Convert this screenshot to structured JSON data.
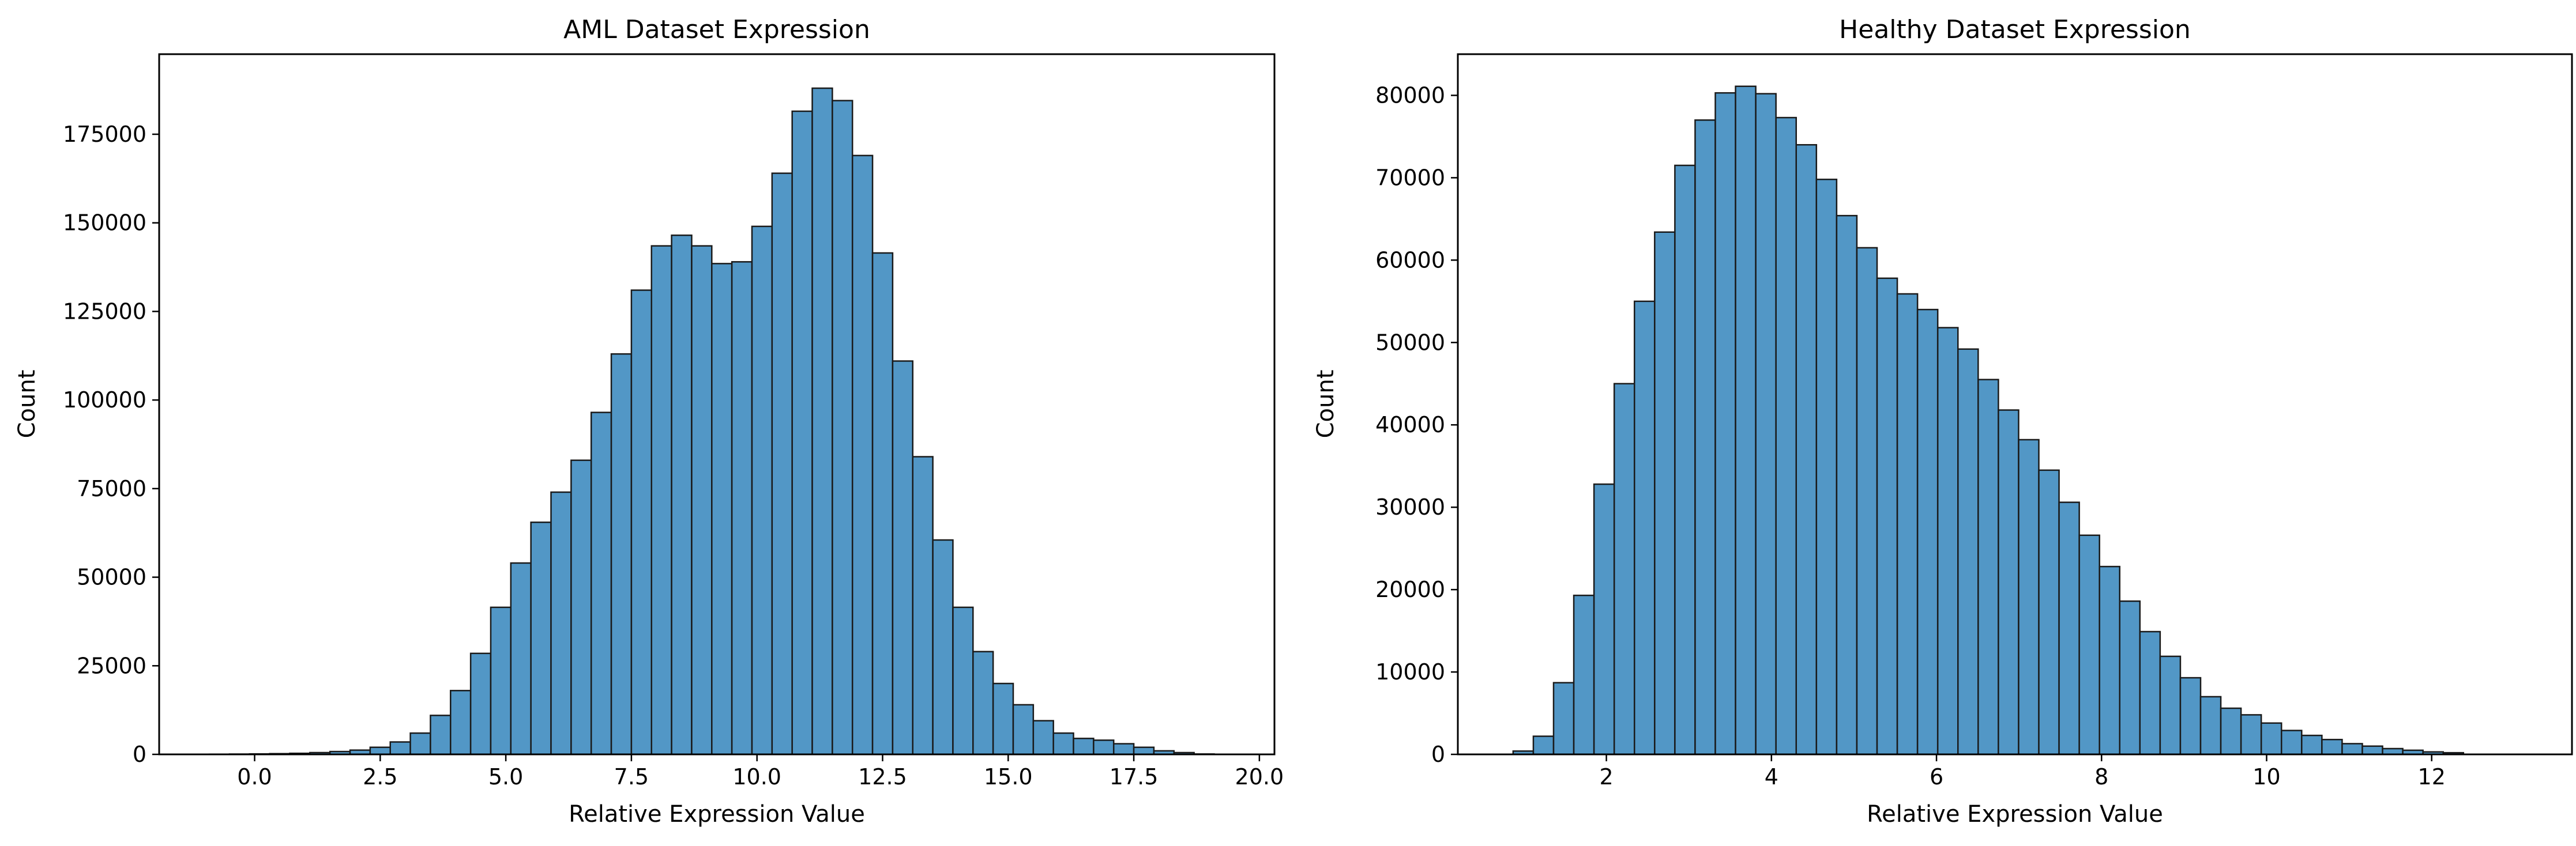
{
  "chart_data": [
    {
      "type": "bar",
      "title": "AML Dataset Expression",
      "xlabel": "Relative Expression Value",
      "ylabel": "Count",
      "xlim": [
        -1.9,
        20.3
      ],
      "ylim": [
        0,
        197600
      ],
      "bar_color": "#5297c6",
      "edge_color": "#1a1a1a",
      "xticks": [
        0.0,
        2.5,
        5.0,
        7.5,
        10.0,
        12.5,
        15.0,
        17.5,
        20.0
      ],
      "xtick_labels": [
        "0.0",
        "2.5",
        "5.0",
        "7.5",
        "10.0",
        "12.5",
        "15.0",
        "17.5",
        "20.0"
      ],
      "yticks": [
        0,
        25000,
        50000,
        75000,
        100000,
        125000,
        150000,
        175000
      ],
      "ytick_labels": [
        "0",
        "25000",
        "50000",
        "75000",
        "100000",
        "125000",
        "150000",
        "175000"
      ],
      "bin_start": -0.9,
      "bin_width": 0.4,
      "values": [
        50,
        80,
        120,
        200,
        300,
        500,
        800,
        1200,
        2000,
        3500,
        6000,
        11000,
        18000,
        28500,
        41500,
        54000,
        65500,
        74000,
        83000,
        96500,
        113000,
        131000,
        143500,
        146500,
        143500,
        138500,
        139000,
        149000,
        164000,
        181500,
        188000,
        184500,
        169000,
        141500,
        111000,
        84000,
        60500,
        41500,
        29000,
        20000,
        14000,
        9500,
        6000,
        4500,
        4000,
        3000,
        2000,
        1000,
        500,
        100
      ]
    },
    {
      "type": "bar",
      "title": "Healthy Dataset Expression",
      "xlabel": "Relative Expression Value",
      "ylabel": "Count",
      "xlim": [
        0.2,
        13.7
      ],
      "ylim": [
        0,
        85000
      ],
      "bar_color": "#5297c6",
      "edge_color": "#1a1a1a",
      "xticks": [
        2,
        4,
        6,
        8,
        10,
        12
      ],
      "xtick_labels": [
        "2",
        "4",
        "6",
        "8",
        "10",
        "12"
      ],
      "yticks": [
        0,
        10000,
        20000,
        30000,
        40000,
        50000,
        60000,
        70000,
        80000
      ],
      "ytick_labels": [
        "0",
        "10000",
        "20000",
        "30000",
        "40000",
        "50000",
        "60000",
        "70000",
        "80000"
      ],
      "bin_start": 0.87,
      "bin_width": 0.245,
      "values": [
        400,
        2200,
        8700,
        19300,
        32800,
        45000,
        55000,
        63400,
        71500,
        77000,
        80300,
        81100,
        80200,
        77300,
        74000,
        69800,
        65400,
        61500,
        57800,
        55900,
        54000,
        51800,
        49200,
        45500,
        41800,
        38200,
        34500,
        30600,
        26600,
        22800,
        18600,
        14900,
        11900,
        9300,
        7000,
        5600,
        4800,
        3800,
        2900,
        2300,
        1800,
        1300,
        1000,
        700,
        500,
        300,
        200
      ]
    }
  ]
}
